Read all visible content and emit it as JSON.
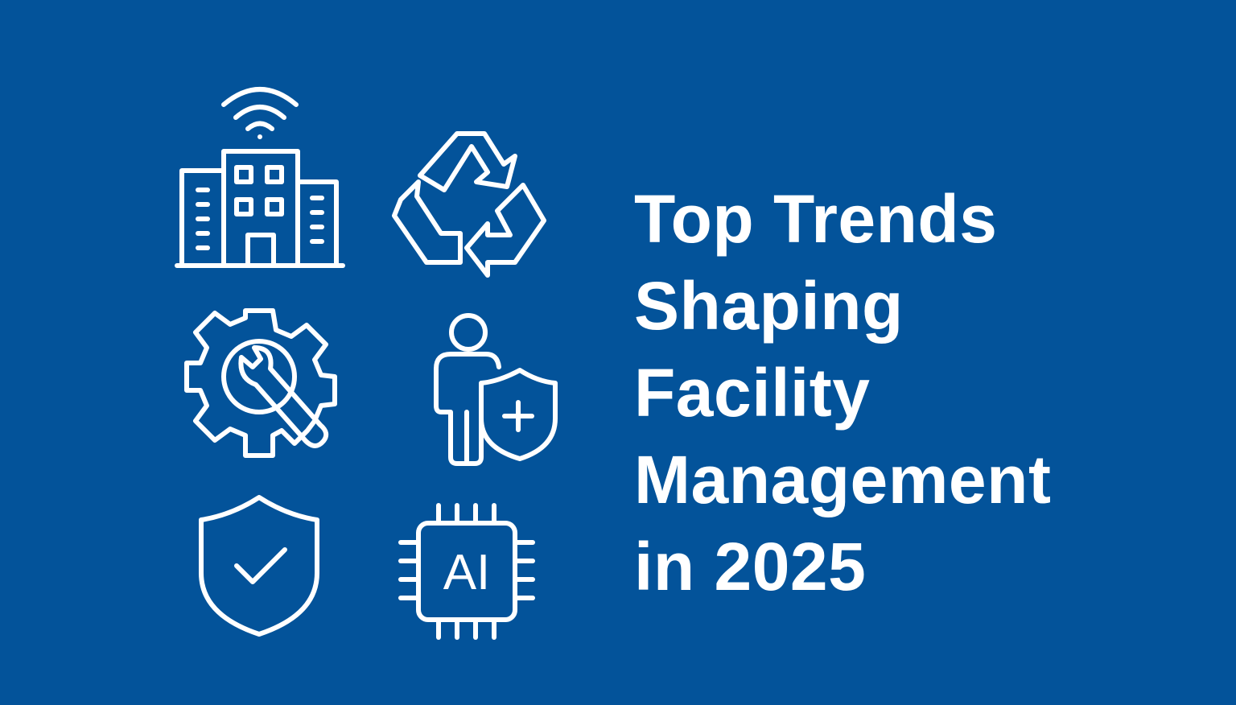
{
  "page": {
    "background_color": "#03539a",
    "foreground_color": "#ffffff"
  },
  "title_lines": [
    "Top Trends",
    "Shaping",
    "Facility",
    "Management",
    "in 2025"
  ],
  "icons": [
    {
      "name": "smart-building-wifi-icon"
    },
    {
      "name": "recycle-icon"
    },
    {
      "name": "gear-wrench-icon"
    },
    {
      "name": "person-health-shield-icon"
    },
    {
      "name": "shield-check-icon"
    },
    {
      "name": "ai-chip-icon",
      "label": "AI"
    }
  ]
}
